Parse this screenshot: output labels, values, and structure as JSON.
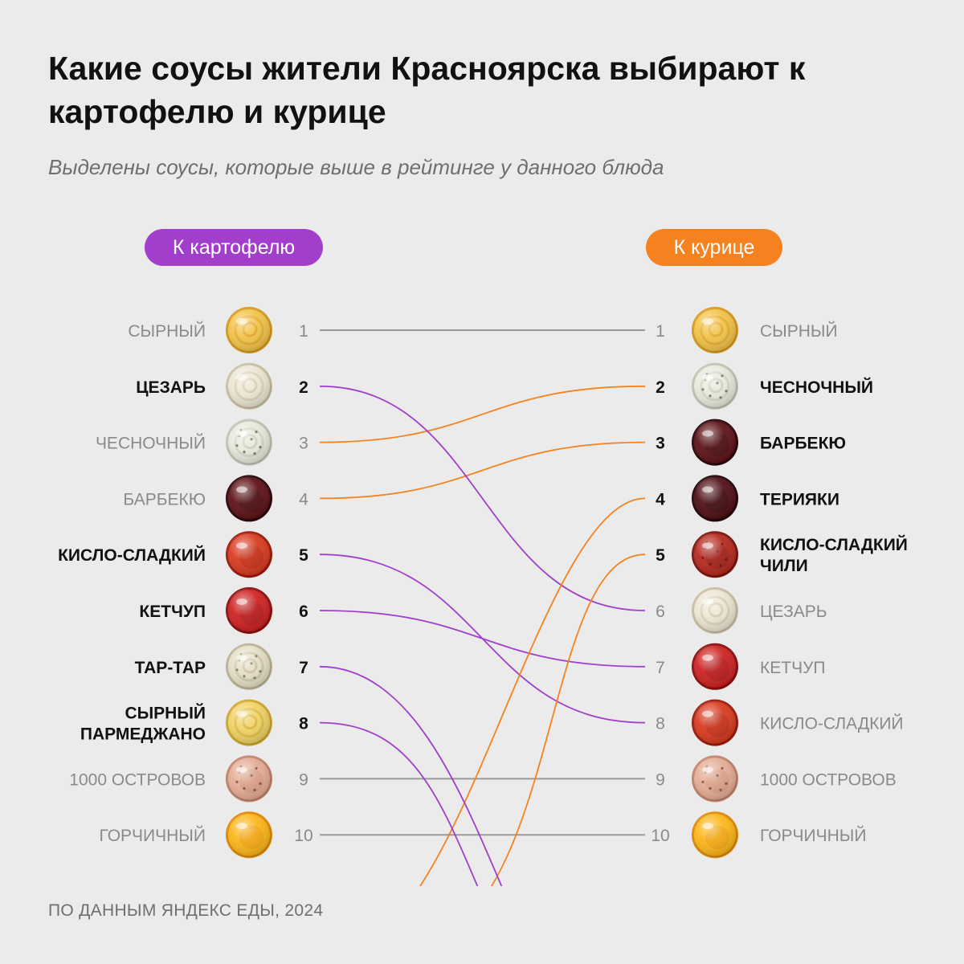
{
  "title": "Какие соусы жители Красноярска выбирают к картофелю и курице",
  "subtitle": "Выделены соусы, которые выше в рейтинге у данного блюда",
  "source": "ПО ДАННЫМ ЯНДЕКС ЕДЫ, 2024",
  "colors": {
    "background": "#ebebeb",
    "potato": "#a13fcc",
    "chicken": "#f5821f",
    "neutral_line": "#9a9a9a",
    "highlight_text": "#111111",
    "muted_text": "#8a8a8a"
  },
  "chart_data": {
    "type": "slope",
    "left_title": "К картофелю",
    "right_title": "К курице",
    "left": [
      {
        "rank": 1,
        "name": [
          "СЫРНЫЙ"
        ],
        "highlight": false,
        "sauce": "cheese"
      },
      {
        "rank": 2,
        "name": [
          "ЦЕЗАРЬ"
        ],
        "highlight": true,
        "sauce": "caesar"
      },
      {
        "rank": 3,
        "name": [
          "ЧЕСНОЧНЫЙ"
        ],
        "highlight": false,
        "sauce": "garlic"
      },
      {
        "rank": 4,
        "name": [
          "БАРБЕКЮ"
        ],
        "highlight": false,
        "sauce": "bbq"
      },
      {
        "rank": 5,
        "name": [
          "КИСЛО-СЛАДКИЙ"
        ],
        "highlight": true,
        "sauce": "sweetsour"
      },
      {
        "rank": 6,
        "name": [
          "КЕТЧУП"
        ],
        "highlight": true,
        "sauce": "ketchup"
      },
      {
        "rank": 7,
        "name": [
          "ТАР-ТАР"
        ],
        "highlight": true,
        "sauce": "tartar"
      },
      {
        "rank": 8,
        "name": [
          "СЫРНЫЙ",
          "ПАРМЕДЖАНО"
        ],
        "highlight": true,
        "sauce": "parmesan"
      },
      {
        "rank": 9,
        "name": [
          "1000 ОСТРОВОВ"
        ],
        "highlight": false,
        "sauce": "thousand"
      },
      {
        "rank": 10,
        "name": [
          "ГОРЧИЧНЫЙ"
        ],
        "highlight": false,
        "sauce": "mustard"
      }
    ],
    "right": [
      {
        "rank": 1,
        "name": [
          "СЫРНЫЙ"
        ],
        "highlight": false,
        "sauce": "cheese"
      },
      {
        "rank": 2,
        "name": [
          "ЧЕСНОЧНЫЙ"
        ],
        "highlight": true,
        "sauce": "garlic"
      },
      {
        "rank": 3,
        "name": [
          "БАРБЕКЮ"
        ],
        "highlight": true,
        "sauce": "bbq"
      },
      {
        "rank": 4,
        "name": [
          "ТЕРИЯКИ"
        ],
        "highlight": true,
        "sauce": "teriyaki"
      },
      {
        "rank": 5,
        "name": [
          "КИСЛО-СЛАДКИЙ",
          "ЧИЛИ"
        ],
        "highlight": true,
        "sauce": "chili"
      },
      {
        "rank": 6,
        "name": [
          "ЦЕЗАРЬ"
        ],
        "highlight": false,
        "sauce": "caesar"
      },
      {
        "rank": 7,
        "name": [
          "КЕТЧУП"
        ],
        "highlight": false,
        "sauce": "ketchup"
      },
      {
        "rank": 8,
        "name": [
          "КИСЛО-СЛАДКИЙ"
        ],
        "highlight": false,
        "sauce": "sweetsour"
      },
      {
        "rank": 9,
        "name": [
          "1000 ОСТРОВОВ"
        ],
        "highlight": false,
        "sauce": "thousand"
      },
      {
        "rank": 10,
        "name": [
          "ГОРЧИЧНЫЙ"
        ],
        "highlight": false,
        "sauce": "mustard"
      }
    ],
    "links": [
      {
        "from": 1,
        "to": 1,
        "color": "neutral"
      },
      {
        "from": 9,
        "to": 9,
        "color": "neutral"
      },
      {
        "from": 10,
        "to": 10,
        "color": "neutral"
      },
      {
        "from": 3,
        "to": 2,
        "color": "chicken"
      },
      {
        "from": 4,
        "to": 3,
        "color": "chicken"
      },
      {
        "from": 2,
        "to": 6,
        "color": "potato"
      },
      {
        "from": 6,
        "to": 7,
        "color": "potato"
      },
      {
        "from": 5,
        "to": 8,
        "color": "potato"
      }
    ],
    "off_chart_links": [
      {
        "side": "right",
        "rank": 4,
        "color": "chicken"
      },
      {
        "side": "right",
        "rank": 5,
        "color": "chicken"
      },
      {
        "side": "left",
        "rank": 7,
        "color": "potato"
      },
      {
        "side": "left",
        "rank": 8,
        "color": "potato"
      }
    ]
  }
}
